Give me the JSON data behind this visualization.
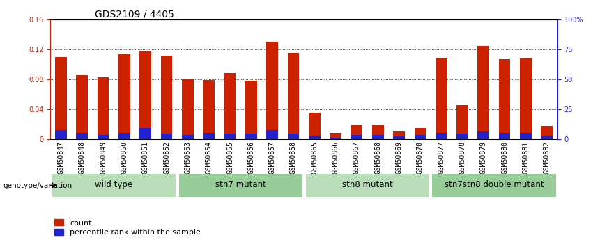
{
  "title": "GDS2109 / 4405",
  "samples": [
    "GSM50847",
    "GSM50848",
    "GSM50849",
    "GSM50850",
    "GSM50851",
    "GSM50852",
    "GSM50853",
    "GSM50854",
    "GSM50855",
    "GSM50856",
    "GSM50857",
    "GSM50858",
    "GSM50865",
    "GSM50866",
    "GSM50867",
    "GSM50868",
    "GSM50869",
    "GSM50870",
    "GSM50877",
    "GSM50878",
    "GSM50879",
    "GSM50880",
    "GSM50881",
    "GSM50882"
  ],
  "counts": [
    0.11,
    0.085,
    0.083,
    0.113,
    0.117,
    0.111,
    0.08,
    0.079,
    0.088,
    0.078,
    0.13,
    0.115,
    0.035,
    0.008,
    0.019,
    0.02,
    0.01,
    0.015,
    0.109,
    0.046,
    0.124,
    0.107,
    0.108,
    0.018
  ],
  "percentile_raw": [
    7.5,
    5.0,
    3.5,
    5.0,
    9.5,
    4.5,
    3.5,
    5.0,
    4.5,
    4.5,
    7.5,
    4.5,
    3.0,
    1.5,
    3.5,
    3.5,
    2.5,
    3.5,
    5.5,
    4.5,
    6.5,
    5.0,
    5.0,
    3.0
  ],
  "groups": [
    {
      "label": "wild type",
      "start": 0,
      "end": 6
    },
    {
      "label": "stn7 mutant",
      "start": 6,
      "end": 12
    },
    {
      "label": "stn8 mutant",
      "start": 12,
      "end": 18
    },
    {
      "label": "stn7stn8 double mutant",
      "start": 18,
      "end": 24
    }
  ],
  "group_colors": [
    "#b8ddb8",
    "#98cc98",
    "#b8ddb8",
    "#98cc98"
  ],
  "bar_color": "#cc2200",
  "pct_color": "#2222cc",
  "ylim_left": [
    0,
    0.16
  ],
  "ylim_right": [
    0,
    100
  ],
  "yticks_left": [
    0,
    0.04,
    0.08,
    0.12,
    0.16
  ],
  "yticks_right": [
    0,
    25,
    50,
    75,
    100
  ],
  "ytick_labels_left": [
    "0",
    "0.04",
    "0.08",
    "0.12",
    "0.16"
  ],
  "ytick_labels_right": [
    "0",
    "25",
    "50",
    "75",
    "100%"
  ],
  "ylabel_left_color": "#cc2200",
  "ylabel_right_color": "#2222cc",
  "bar_width": 0.55,
  "title_fontsize": 10,
  "tick_fontsize": 7,
  "group_label_fontsize": 8.5,
  "legend_fontsize": 8
}
